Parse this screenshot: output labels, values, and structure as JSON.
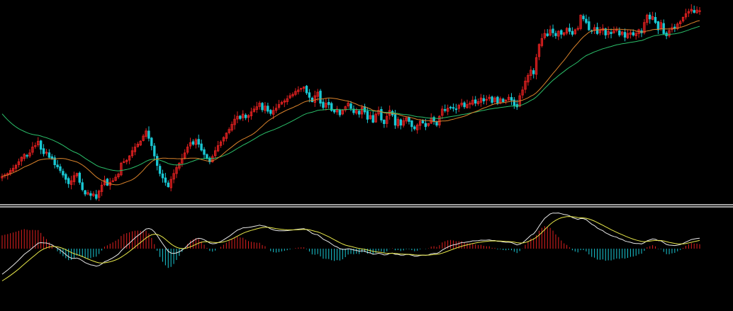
{
  "chart_data": [
    {
      "type": "candlestick",
      "panel": "price",
      "colors": {
        "up": "#e02020",
        "down": "#19c8d4",
        "ma_fast": "#d9822b",
        "ma_slow": "#2bbf6a"
      },
      "closes": [
        240,
        238,
        236,
        232,
        229,
        225,
        220,
        214,
        210,
        212,
        208,
        200,
        198,
        192,
        203,
        209,
        207,
        214,
        216,
        224,
        227,
        232,
        238,
        244,
        250,
        246,
        239,
        236,
        248,
        258,
        264,
        262,
        266,
        264,
        270,
        260,
        252,
        245,
        252,
        248,
        246,
        241,
        237,
        222,
        220,
        218,
        212,
        205,
        200,
        196,
        192,
        185,
        178,
        188,
        198,
        212,
        225,
        236,
        242,
        248,
        254,
        244,
        236,
        228,
        222,
        216,
        208,
        200,
        194,
        196,
        190,
        196,
        204,
        210,
        215,
        220,
        213,
        205,
        198,
        193,
        187,
        181,
        176,
        169,
        162,
        158,
        161,
        155,
        160,
        157,
        152,
        148,
        145,
        140,
        149,
        144,
        151,
        154,
        150,
        147,
        142,
        139,
        137,
        134,
        130,
        128,
        124,
        122,
        120,
        118,
        126,
        132,
        138,
        130,
        125,
        140,
        146,
        140,
        142,
        150,
        152,
        148,
        156,
        150,
        145,
        140,
        147,
        153,
        150,
        155,
        146,
        152,
        162,
        157,
        166,
        155,
        150,
        163,
        168,
        158,
        150,
        156,
        170,
        162,
        170,
        164,
        160,
        165,
        172,
        175,
        170,
        165,
        167,
        172,
        168,
        161,
        165,
        170,
        158,
        148,
        150,
        147,
        146,
        147,
        148,
        143,
        140,
        145,
        142,
        140,
        136,
        140,
        138,
        133,
        137,
        135,
        132,
        139,
        133,
        140,
        134,
        138,
        136,
        132,
        136,
        143,
        145,
        130,
        122,
        110,
        102,
        95,
        100,
        78,
        60,
        52,
        45,
        48,
        40,
        44,
        48,
        42,
        46,
        44,
        38,
        42,
        46,
        40,
        38,
        20,
        25,
        30,
        40,
        42,
        37,
        45,
        40,
        38,
        47,
        42,
        45,
        41,
        40,
        47,
        43,
        50,
        45,
        44,
        47,
        45,
        40,
        44,
        30,
        20,
        25,
        22,
        30,
        40,
        30,
        45,
        48,
        41,
        37,
        38,
        32,
        29,
        23,
        18,
        15,
        12,
        16,
        13,
        14
      ]
    },
    {
      "type": "macd",
      "panel": "indicator",
      "colors": {
        "positive": "#e02020",
        "negative": "#19c8d4",
        "dif": "#e8e8e8",
        "dea": "#e8e84a"
      },
      "zero_level": 0
    }
  ]
}
